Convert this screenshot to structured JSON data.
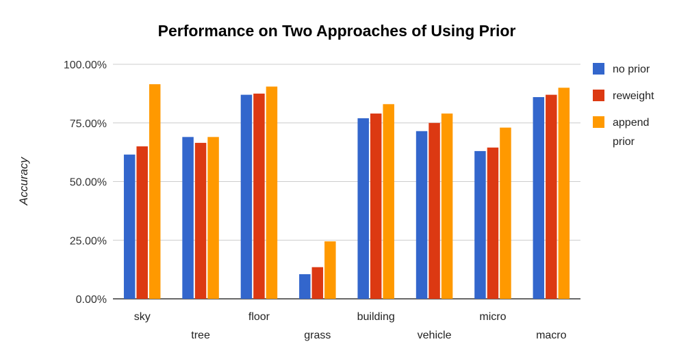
{
  "chart_data": {
    "type": "bar",
    "title": "Performance on Two Approaches of Using Prior",
    "xlabel": "",
    "ylabel": "Accuracy",
    "ylim": [
      0,
      100
    ],
    "yticks": [
      "0.00%",
      "25.00%",
      "50.00%",
      "75.00%",
      "100.00%"
    ],
    "ytick_values": [
      0,
      25,
      50,
      75,
      100
    ],
    "grid": true,
    "legend_position": "right",
    "categories": [
      "sky",
      "tree",
      "floor",
      "grass",
      "building",
      "vehicle",
      "micro",
      "macro"
    ],
    "series": [
      {
        "name": "no prior",
        "color": "#3366cc",
        "values": [
          61.5,
          69,
          87,
          10.5,
          77,
          71.5,
          63,
          86
        ]
      },
      {
        "name": "reweight",
        "color": "#dc3912",
        "values": [
          65,
          66.5,
          87.5,
          13.5,
          79,
          75,
          64.5,
          87
        ]
      },
      {
        "name": "append prior",
        "color": "#ff9900",
        "values": [
          91.5,
          69,
          90.5,
          24.5,
          83,
          79,
          73,
          90
        ]
      }
    ]
  }
}
